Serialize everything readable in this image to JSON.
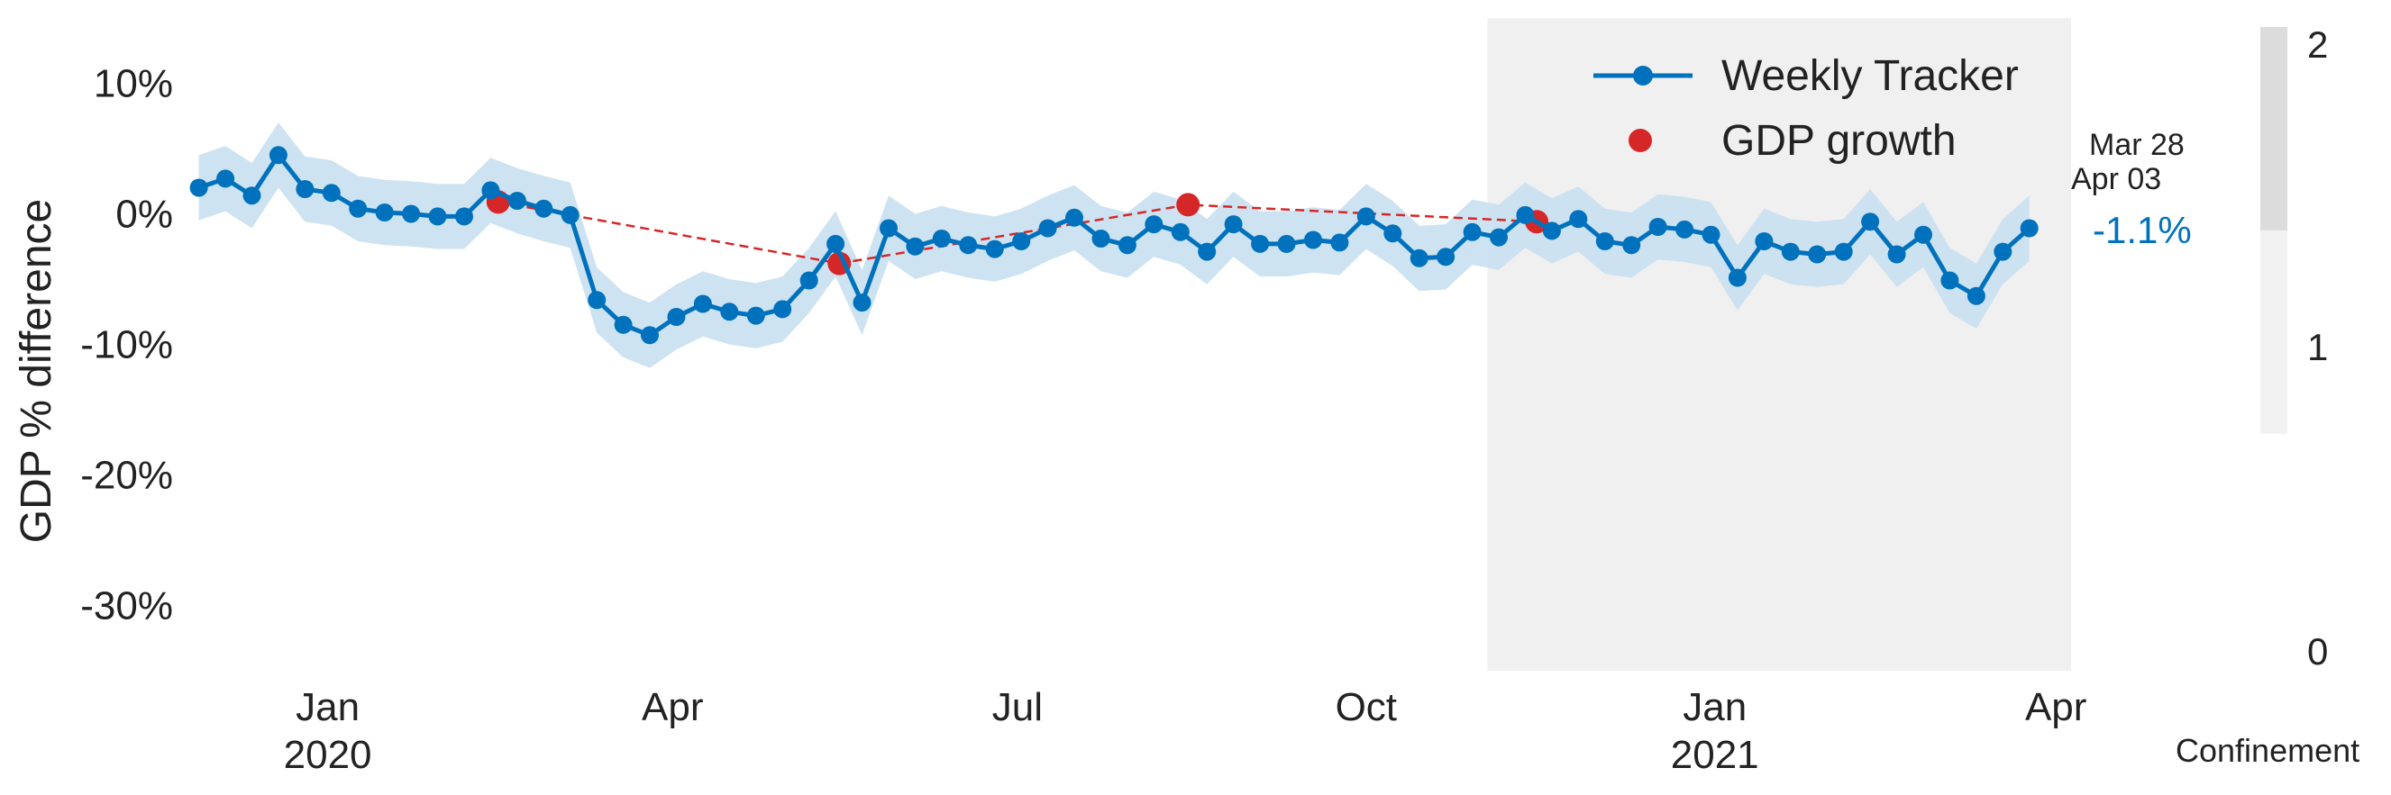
{
  "chart_data": {
    "type": "line",
    "ylabel": "GDP % difference",
    "ylim": [
      -35,
      15
    ],
    "yticks": [
      10,
      0,
      -10,
      -20,
      -30
    ],
    "ytick_labels": [
      "10%",
      "0%",
      "-10%",
      "-20%",
      "-30%"
    ],
    "xlim": [
      "2019-11-25",
      "2021-04-05"
    ],
    "xticks": [
      {
        "date": "2020-01-01",
        "label": "Jan",
        "year": "2020"
      },
      {
        "date": "2020-04-01",
        "label": "Apr",
        "year": ""
      },
      {
        "date": "2020-07-01",
        "label": "Jul",
        "year": ""
      },
      {
        "date": "2020-10-01",
        "label": "Oct",
        "year": ""
      },
      {
        "date": "2021-01-01",
        "label": "Jan",
        "year": "2021"
      },
      {
        "date": "2021-04-01",
        "label": "Apr",
        "year": ""
      }
    ],
    "shaded_region": {
      "start": "2020-11-02",
      "end": "2021-04-05",
      "color": "#F0F0F0"
    },
    "series": [
      {
        "name": "Weekly Tracker",
        "color": "#0072BD",
        "band_color": "#C9E0F0",
        "band_halfwidth": 2.5,
        "start_date": "2019-11-28",
        "step_days": 7,
        "values": [
          2.0,
          2.7,
          1.4,
          4.5,
          1.9,
          1.6,
          0.4,
          0.1,
          0.0,
          -0.2,
          -0.2,
          1.8,
          1.0,
          0.4,
          -0.1,
          -6.6,
          -8.5,
          -9.3,
          -7.9,
          -6.9,
          -7.5,
          -7.8,
          -7.3,
          -5.1,
          -2.3,
          -6.8,
          -1.1,
          -2.5,
          -1.9,
          -2.4,
          -2.7,
          -2.1,
          -1.1,
          -0.3,
          -1.9,
          -2.4,
          -0.8,
          -1.4,
          -2.9,
          -0.8,
          -2.3,
          -2.3,
          -2.0,
          -2.2,
          -0.2,
          -1.5,
          -3.4,
          -3.3,
          -1.4,
          -1.8,
          -0.1,
          -1.3,
          -0.4,
          -2.1,
          -2.4,
          -1.0,
          -1.2,
          -1.6,
          -4.9,
          -2.1,
          -2.9,
          -3.1,
          -2.9,
          -0.6,
          -3.1,
          -1.6,
          -5.1,
          -6.3,
          -2.9,
          -1.1
        ]
      },
      {
        "name": "GDP growth",
        "color": "#D62728",
        "points": [
          {
            "date": "2020-02-15",
            "value": 0.9
          },
          {
            "date": "2020-05-15",
            "value": -3.8
          },
          {
            "date": "2020-08-15",
            "value": 0.7
          },
          {
            "date": "2020-11-15",
            "value": -0.6
          }
        ]
      }
    ],
    "legend": {
      "position": "top-right",
      "entries": [
        "Weekly Tracker",
        "GDP growth"
      ]
    },
    "annotations": {
      "date_range_1": "Mar 28",
      "date_range_2": "Apr 03",
      "latest_value": "-1.1%"
    },
    "colorbar": {
      "ticks": [
        "2",
        "1",
        "0"
      ],
      "label": "Confinement",
      "segments": [
        {
          "from": 0.7,
          "to": 1.35,
          "color": "#F2F2F2"
        },
        {
          "from": 1.35,
          "to": 2.0,
          "color": "#DCDCDC"
        }
      ],
      "range": [
        0,
        2
      ]
    },
    "grid": false
  }
}
